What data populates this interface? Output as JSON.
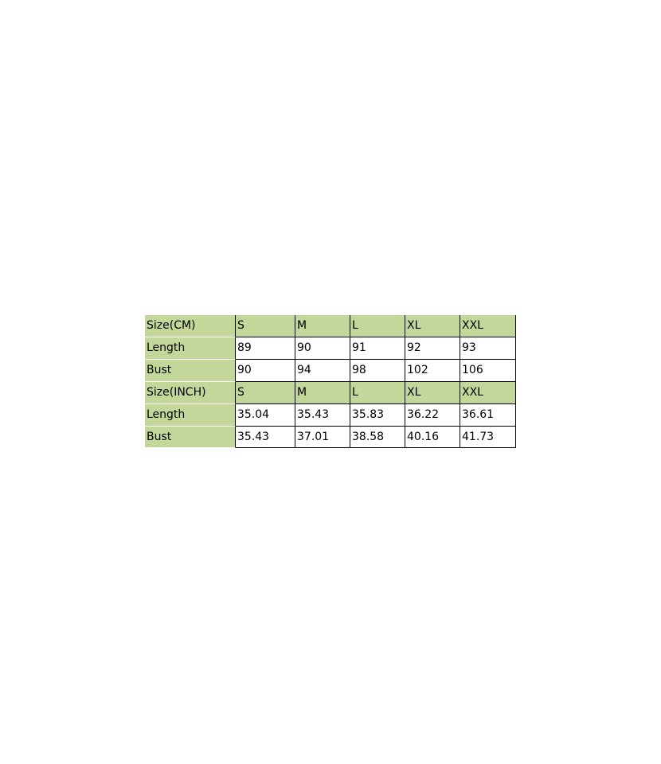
{
  "table": {
    "rows": [
      [
        "Size(CM)",
        "S",
        "M",
        "L",
        "XL",
        "XXL"
      ],
      [
        "Length",
        "89",
        "90",
        "91",
        "92",
        "93"
      ],
      [
        "Bust",
        "90",
        "94",
        "98",
        "102",
        "106"
      ],
      [
        "Size(INCH)",
        "S",
        "M",
        "L",
        "XL",
        "XXL"
      ],
      [
        "Length",
        "35.04",
        "35.43",
        "35.83",
        "36.22",
        "36.61"
      ],
      [
        "Bust",
        "35.43",
        "37.01",
        "38.58",
        "40.16",
        "41.73"
      ]
    ]
  }
}
